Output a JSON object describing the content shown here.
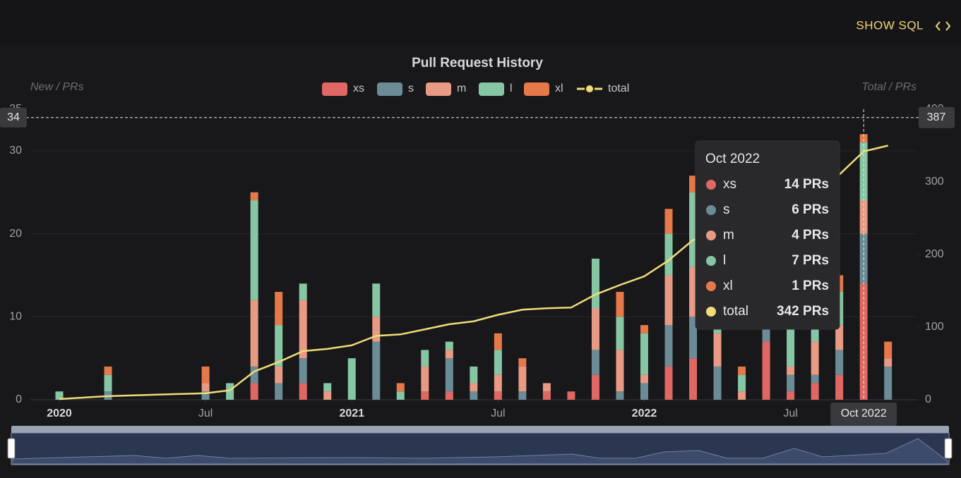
{
  "button": "SHOW SQL",
  "chart_data": {
    "type": "bar",
    "title": "Pull Request History",
    "stacked": true,
    "y_label": "New / PRs",
    "y2_label": "Total / PRs",
    "x": [
      "2020-01",
      "2020-03",
      "2020-07",
      "2020-08",
      "2020-09",
      "2020-10",
      "2020-11",
      "2020-12",
      "2021-01",
      "2021-02",
      "2021-03",
      "2021-04",
      "2021-05",
      "2021-06",
      "2021-07",
      "2021-08",
      "2021-09",
      "2021-10",
      "2021-11",
      "2021-12",
      "2022-01",
      "2022-02",
      "2022-03",
      "2022-04",
      "2022-05",
      "2022-06",
      "2022-07",
      "2022-08",
      "2022-09",
      "2022-10",
      "2022-11"
    ],
    "xticks": [
      {
        "value": "2020-01",
        "label": "2020"
      },
      {
        "value": "2020-07",
        "label": "Jul"
      },
      {
        "value": "2021-01",
        "label": "2021"
      },
      {
        "value": "2021-07",
        "label": "Jul"
      },
      {
        "value": "2022-01",
        "label": "2022"
      },
      {
        "value": "2022-07",
        "label": "Jul"
      }
    ],
    "series": [
      {
        "name": "xs",
        "color": "#e06864",
        "values": [
          0,
          0,
          0,
          0,
          2,
          0,
          2,
          0,
          0,
          0,
          0,
          1,
          1,
          0,
          1,
          0,
          1,
          1,
          3,
          0,
          0,
          4,
          5,
          0,
          0,
          7,
          1,
          2,
          3,
          14,
          0
        ]
      },
      {
        "name": "s",
        "color": "#6b8c97",
        "values": [
          0,
          1,
          1,
          0,
          2,
          2,
          3,
          0,
          0,
          7,
          0,
          0,
          4,
          1,
          0,
          1,
          0,
          0,
          3,
          1,
          2,
          5,
          5,
          4,
          0,
          2,
          2,
          1,
          3,
          6,
          4
        ]
      },
      {
        "name": "m",
        "color": "#e89a84",
        "values": [
          0,
          0,
          1,
          0,
          8,
          2,
          7,
          1,
          0,
          3,
          0,
          3,
          1,
          1,
          2,
          3,
          1,
          0,
          5,
          5,
          1,
          6,
          6,
          4,
          1,
          0,
          1,
          4,
          3,
          4,
          1
        ]
      },
      {
        "name": "l",
        "color": "#87c6a4",
        "values": [
          1,
          2,
          0,
          2,
          12,
          5,
          2,
          1,
          5,
          4,
          1,
          2,
          1,
          2,
          3,
          0,
          0,
          0,
          6,
          4,
          5,
          5,
          9,
          1,
          2,
          0,
          7,
          2,
          4,
          7,
          0
        ]
      },
      {
        "name": "xl",
        "color": "#e6794a",
        "values": [
          0,
          1,
          2,
          0,
          1,
          4,
          0,
          0,
          0,
          0,
          1,
          0,
          0,
          0,
          2,
          1,
          0,
          0,
          0,
          3,
          1,
          3,
          2,
          0,
          1,
          0,
          0,
          0,
          2,
          1,
          2
        ]
      },
      {
        "name": "total",
        "type": "line",
        "axis": "y2",
        "color": "#f0dc78",
        "values": [
          1,
          5,
          9,
          13,
          39,
          52,
          67,
          70,
          75,
          88,
          90,
          97,
          104,
          108,
          117,
          124,
          126,
          127,
          145,
          158,
          170,
          192,
          220,
          230,
          236,
          245,
          256,
          265,
          310,
          342,
          350
        ]
      }
    ],
    "ylim": [
      0,
      35
    ],
    "yticks": [
      0,
      10,
      20,
      30
    ],
    "y2lim": [
      0,
      400
    ],
    "y2ticks": [
      0,
      100,
      200,
      300,
      400
    ],
    "grid": true,
    "crosshair": {
      "x": "2022-10",
      "y": 34,
      "y2": 387
    },
    "tooltip": {
      "title": "Oct 2022",
      "value_labels": [
        "14 PRs",
        "6 PRs",
        "4 PRs",
        "7 PRs",
        "1 PRs",
        "342 PRs"
      ]
    }
  }
}
